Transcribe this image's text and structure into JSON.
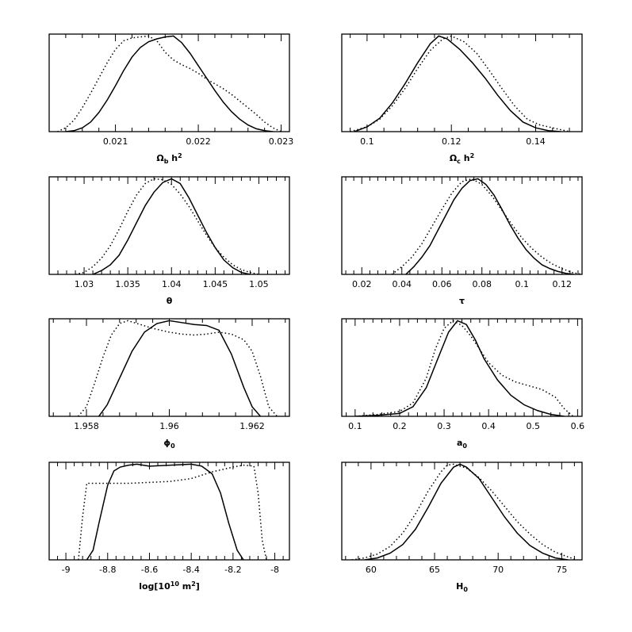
{
  "chart_data": [
    {
      "type": "line",
      "xlabel": "Ω_b h²",
      "xlabel_parts": [
        {
          "t": "Ω",
          "s": "n"
        },
        {
          "t": "b",
          "s": "sub"
        },
        {
          "t": " h",
          "s": "n"
        },
        {
          "t": "2",
          "s": "sup"
        }
      ],
      "xlim": [
        0.0202,
        0.0231
      ],
      "ylim": [
        0,
        1.02
      ],
      "ticks": [
        "0.021",
        "0.022",
        "0.023"
      ],
      "series": [
        {
          "style": "solid",
          "x": [
            0.0204,
            0.0205,
            0.0206,
            0.0207,
            0.0208,
            0.0209,
            0.021,
            0.0211,
            0.0212,
            0.0213,
            0.0214,
            0.0215,
            0.0216,
            0.0217,
            0.0218,
            0.0219,
            0.022,
            0.0221,
            0.0222,
            0.0223,
            0.0224,
            0.0225,
            0.0226,
            0.0227,
            0.0228,
            0.0229
          ],
          "y": [
            0.0,
            0.01,
            0.04,
            0.1,
            0.2,
            0.33,
            0.48,
            0.64,
            0.78,
            0.88,
            0.94,
            0.97,
            0.99,
            1.0,
            0.93,
            0.82,
            0.69,
            0.56,
            0.43,
            0.31,
            0.21,
            0.13,
            0.07,
            0.03,
            0.01,
            0.0
          ]
        },
        {
          "style": "dotted",
          "x": [
            0.0203,
            0.0204,
            0.0205,
            0.0206,
            0.0207,
            0.0208,
            0.0209,
            0.021,
            0.0211,
            0.0212,
            0.0213,
            0.0214,
            0.0215,
            0.0216,
            0.0217,
            0.0218,
            0.0219,
            0.022,
            0.0221,
            0.0222,
            0.0223,
            0.0224,
            0.0225,
            0.0226,
            0.0227,
            0.0228,
            0.0229,
            0.023
          ],
          "y": [
            0.0,
            0.04,
            0.12,
            0.25,
            0.4,
            0.56,
            0.72,
            0.86,
            0.95,
            0.98,
            0.99,
            1.0,
            0.95,
            0.83,
            0.75,
            0.7,
            0.66,
            0.61,
            0.55,
            0.5,
            0.45,
            0.39,
            0.32,
            0.25,
            0.18,
            0.1,
            0.04,
            0.0
          ]
        }
      ]
    },
    {
      "type": "line",
      "xlabel": "Ω_c h²",
      "xlabel_parts": [
        {
          "t": "Ω",
          "s": "n"
        },
        {
          "t": "c",
          "s": "sub"
        },
        {
          "t": " h",
          "s": "n"
        },
        {
          "t": "2",
          "s": "sup"
        }
      ],
      "xlim": [
        0.094,
        0.151
      ],
      "ylim": [
        0,
        1.02
      ],
      "ticks": [
        "0.1",
        "0.12",
        "0.14"
      ],
      "series": [
        {
          "style": "solid",
          "x": [
            0.097,
            0.1,
            0.103,
            0.106,
            0.109,
            0.112,
            0.115,
            0.117,
            0.119,
            0.122,
            0.125,
            0.128,
            0.131,
            0.134,
            0.137,
            0.14,
            0.143,
            0.146
          ],
          "y": [
            0.0,
            0.05,
            0.14,
            0.3,
            0.5,
            0.72,
            0.92,
            1.0,
            0.97,
            0.86,
            0.72,
            0.56,
            0.38,
            0.22,
            0.1,
            0.04,
            0.01,
            0.0
          ]
        },
        {
          "style": "dotted",
          "x": [
            0.096,
            0.1,
            0.103,
            0.106,
            0.109,
            0.112,
            0.115,
            0.118,
            0.12,
            0.123,
            0.126,
            0.129,
            0.132,
            0.135,
            0.138,
            0.141,
            0.144,
            0.148
          ],
          "y": [
            0.0,
            0.05,
            0.13,
            0.27,
            0.45,
            0.66,
            0.85,
            0.97,
            1.0,
            0.94,
            0.82,
            0.64,
            0.45,
            0.27,
            0.13,
            0.07,
            0.04,
            0.0
          ]
        }
      ]
    },
    {
      "type": "line",
      "xlabel": "θ",
      "xlabel_parts": [
        {
          "t": "θ",
          "s": "n"
        }
      ],
      "xlim": [
        1.026,
        1.0535
      ],
      "ylim": [
        0,
        1.02
      ],
      "ticks": [
        "1.03",
        "1.035",
        "1.04",
        "1.045",
        "1.05"
      ],
      "series": [
        {
          "style": "solid",
          "x": [
            1.031,
            1.032,
            1.033,
            1.034,
            1.035,
            1.036,
            1.037,
            1.038,
            1.039,
            1.04,
            1.041,
            1.042,
            1.043,
            1.044,
            1.045,
            1.046,
            1.047,
            1.048,
            1.049
          ],
          "y": [
            0.0,
            0.04,
            0.1,
            0.2,
            0.36,
            0.54,
            0.72,
            0.86,
            0.96,
            1.0,
            0.95,
            0.8,
            0.62,
            0.44,
            0.28,
            0.15,
            0.07,
            0.02,
            0.0
          ]
        },
        {
          "style": "dotted",
          "x": [
            1.029,
            1.03,
            1.031,
            1.032,
            1.033,
            1.034,
            1.035,
            1.036,
            1.037,
            1.038,
            1.039,
            1.04,
            1.041,
            1.042,
            1.043,
            1.044,
            1.045,
            1.046,
            1.047,
            1.048,
            1.049,
            1.05
          ],
          "y": [
            0.0,
            0.02,
            0.08,
            0.17,
            0.3,
            0.47,
            0.66,
            0.83,
            0.95,
            1.0,
            0.99,
            0.94,
            0.84,
            0.71,
            0.56,
            0.41,
            0.28,
            0.18,
            0.1,
            0.05,
            0.02,
            0.0
          ]
        }
      ]
    },
    {
      "type": "line",
      "xlabel": "τ",
      "xlabel_parts": [
        {
          "t": "τ",
          "s": "n"
        }
      ],
      "xlim": [
        0.01,
        0.13
      ],
      "ylim": [
        0,
        1.02
      ],
      "ticks": [
        "0.02",
        "0.04",
        "0.06",
        "0.08",
        "0.1",
        "0.12"
      ],
      "series": [
        {
          "style": "solid",
          "x": [
            0.042,
            0.046,
            0.05,
            0.054,
            0.058,
            0.062,
            0.066,
            0.07,
            0.074,
            0.078,
            0.082,
            0.086,
            0.09,
            0.094,
            0.098,
            0.102,
            0.106,
            0.11,
            0.114,
            0.118,
            0.122,
            0.126
          ],
          "y": [
            0.0,
            0.08,
            0.18,
            0.3,
            0.46,
            0.62,
            0.78,
            0.9,
            0.98,
            1.0,
            0.94,
            0.83,
            0.68,
            0.52,
            0.38,
            0.26,
            0.17,
            0.1,
            0.06,
            0.03,
            0.01,
            0.0
          ]
        },
        {
          "style": "dotted",
          "x": [
            0.035,
            0.04,
            0.045,
            0.05,
            0.055,
            0.06,
            0.065,
            0.07,
            0.075,
            0.08,
            0.085,
            0.09,
            0.095,
            0.1,
            0.105,
            0.11,
            0.115,
            0.12,
            0.125,
            0.13
          ],
          "y": [
            0.0,
            0.08,
            0.18,
            0.32,
            0.5,
            0.68,
            0.85,
            0.97,
            1.0,
            0.94,
            0.82,
            0.67,
            0.52,
            0.38,
            0.27,
            0.18,
            0.11,
            0.06,
            0.02,
            0.0
          ]
        }
      ]
    },
    {
      "type": "line",
      "xlabel": "ϕ₀",
      "xlabel_parts": [
        {
          "t": "ϕ",
          "s": "n"
        },
        {
          "t": "0",
          "s": "sub"
        }
      ],
      "xlim": [
        1.9571,
        1.9629
      ],
      "ylim": [
        0,
        1.02
      ],
      "ticks": [
        "1.958",
        "1.96",
        "1.962"
      ],
      "series": [
        {
          "style": "solid",
          "x": [
            1.9583,
            1.9585,
            1.9588,
            1.9591,
            1.9594,
            1.9597,
            1.96,
            1.9603,
            1.9606,
            1.9609,
            1.9612,
            1.9615,
            1.9618,
            1.962,
            1.9622
          ],
          "y": [
            0.0,
            0.12,
            0.4,
            0.68,
            0.88,
            0.97,
            1.0,
            0.98,
            0.96,
            0.95,
            0.9,
            0.65,
            0.3,
            0.1,
            0.0
          ]
        },
        {
          "style": "dotted",
          "x": [
            1.9578,
            1.958,
            1.9582,
            1.9584,
            1.9586,
            1.9588,
            1.959,
            1.9593,
            1.9596,
            1.96,
            1.9603,
            1.9606,
            1.9609,
            1.9612,
            1.9615,
            1.9618,
            1.962,
            1.9622,
            1.9624,
            1.9626
          ],
          "y": [
            0.0,
            0.1,
            0.35,
            0.62,
            0.85,
            0.97,
            1.0,
            0.96,
            0.92,
            0.88,
            0.86,
            0.85,
            0.86,
            0.88,
            0.86,
            0.8,
            0.68,
            0.42,
            0.1,
            0.0
          ]
        }
      ]
    },
    {
      "type": "line",
      "xlabel": "a₀",
      "xlabel_parts": [
        {
          "t": "a",
          "s": "n"
        },
        {
          "t": "0",
          "s": "sub"
        }
      ],
      "xlim": [
        0.07,
        0.61
      ],
      "ylim": [
        0,
        1.02
      ],
      "ticks": [
        "0.1",
        "0.2",
        "0.3",
        "0.4",
        "0.5",
        "0.6"
      ],
      "series": [
        {
          "style": "solid",
          "x": [
            0.1,
            0.15,
            0.2,
            0.23,
            0.26,
            0.29,
            0.31,
            0.33,
            0.35,
            0.37,
            0.39,
            0.42,
            0.45,
            0.48,
            0.51,
            0.54,
            0.57
          ],
          "y": [
            0.0,
            0.01,
            0.03,
            0.1,
            0.3,
            0.65,
            0.88,
            1.0,
            0.96,
            0.8,
            0.6,
            0.38,
            0.22,
            0.12,
            0.06,
            0.02,
            0.0
          ]
        },
        {
          "style": "dotted",
          "x": [
            0.1,
            0.15,
            0.2,
            0.23,
            0.26,
            0.28,
            0.3,
            0.32,
            0.34,
            0.36,
            0.38,
            0.4,
            0.43,
            0.46,
            0.49,
            0.52,
            0.55,
            0.57,
            0.59
          ],
          "y": [
            0.0,
            0.02,
            0.05,
            0.14,
            0.4,
            0.7,
            0.92,
            1.0,
            0.95,
            0.84,
            0.7,
            0.56,
            0.43,
            0.36,
            0.32,
            0.28,
            0.2,
            0.08,
            0.0
          ]
        }
      ]
    },
    {
      "type": "line",
      "xlabel": "log[10¹⁰ m²]",
      "xlabel_parts": [
        {
          "t": "log[10",
          "s": "n"
        },
        {
          "t": "10",
          "s": "sup"
        },
        {
          "t": " m",
          "s": "n"
        },
        {
          "t": "2",
          "s": "sup"
        },
        {
          "t": "]",
          "s": "n"
        }
      ],
      "xlim": [
        -9.08,
        -7.93
      ],
      "ylim": [
        0,
        1.02
      ],
      "ticks": [
        "-9",
        "-8.8",
        "-8.6",
        "-8.4",
        "-8.2",
        "-8"
      ],
      "series": [
        {
          "style": "solid",
          "x": [
            -8.9,
            -8.87,
            -8.84,
            -8.8,
            -8.77,
            -8.74,
            -8.7,
            -8.66,
            -8.6,
            -8.5,
            -8.4,
            -8.35,
            -8.3,
            -8.26,
            -8.22,
            -8.18,
            -8.15
          ],
          "y": [
            0.0,
            0.1,
            0.4,
            0.78,
            0.93,
            0.97,
            0.99,
            1.0,
            0.98,
            0.99,
            1.0,
            0.98,
            0.9,
            0.7,
            0.38,
            0.1,
            0.0
          ]
        },
        {
          "style": "dotted",
          "x": [
            -8.94,
            -8.92,
            -8.9,
            -8.8,
            -8.7,
            -8.6,
            -8.5,
            -8.4,
            -8.3,
            -8.2,
            -8.15,
            -8.1,
            -8.08,
            -8.06,
            -8.04
          ],
          "y": [
            0.0,
            0.45,
            0.8,
            0.8,
            0.8,
            0.81,
            0.82,
            0.85,
            0.92,
            0.97,
            0.99,
            0.98,
            0.7,
            0.2,
            0.0
          ]
        }
      ]
    },
    {
      "type": "line",
      "xlabel": "H₀",
      "xlabel_parts": [
        {
          "t": "H",
          "s": "n"
        },
        {
          "t": "0",
          "s": "sub"
        }
      ],
      "xlim": [
        57.7,
        76.6
      ],
      "ylim": [
        0,
        1.02
      ],
      "ticks": [
        "60",
        "65",
        "70",
        "75"
      ],
      "series": [
        {
          "style": "solid",
          "x": [
            59.5,
            60.5,
            61.5,
            62.5,
            63.5,
            64.5,
            65.5,
            66.5,
            67,
            67.5,
            68.5,
            69.5,
            70.5,
            71.5,
            72.5,
            73.5,
            74.5,
            75.5
          ],
          "y": [
            0.0,
            0.02,
            0.07,
            0.16,
            0.32,
            0.55,
            0.8,
            0.97,
            1.0,
            0.97,
            0.85,
            0.65,
            0.45,
            0.28,
            0.15,
            0.07,
            0.02,
            0.0
          ]
        },
        {
          "style": "dotted",
          "x": [
            58.5,
            59.5,
            60.5,
            61.5,
            62.5,
            63.5,
            64.5,
            65.5,
            66,
            66.5,
            67.5,
            68.5,
            69.5,
            70.5,
            71.5,
            72.5,
            73.5,
            74.5,
            75.5,
            76.2
          ],
          "y": [
            0.0,
            0.02,
            0.06,
            0.14,
            0.28,
            0.48,
            0.72,
            0.92,
            0.99,
            1.0,
            0.96,
            0.86,
            0.72,
            0.56,
            0.4,
            0.27,
            0.16,
            0.08,
            0.03,
            0.0
          ]
        }
      ]
    }
  ]
}
